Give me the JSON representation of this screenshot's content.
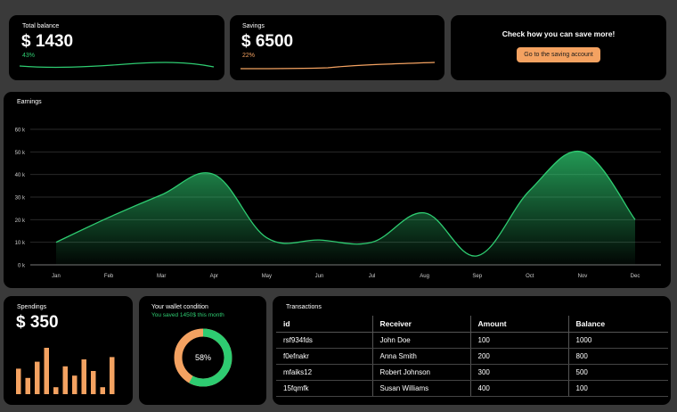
{
  "balance": {
    "label": "Total balance",
    "amount": "$ 1430",
    "percent": "43%",
    "line_color": "#2ecc71"
  },
  "savings": {
    "label": "Savings",
    "amount": "$ 6500",
    "percent": "22%",
    "line_color": "#f4a261"
  },
  "promo": {
    "title": "Check how you can save more!",
    "button_label": "Go to the saving account"
  },
  "earnings": {
    "label": "Earnings",
    "chart_data": {
      "type": "area",
      "categories": [
        "Jan",
        "Feb",
        "Mar",
        "Apr",
        "May",
        "Jun",
        "Jul",
        "Aug",
        "Sep",
        "Oct",
        "Nov",
        "Dec"
      ],
      "values": [
        10000,
        21000,
        31000,
        40000,
        12000,
        11000,
        10000,
        23000,
        4000,
        33000,
        50000,
        20000
      ],
      "y_ticks": [
        "0 k",
        "10 k",
        "20 k",
        "30 k",
        "40 k",
        "50 k",
        "60 k"
      ],
      "ylim": [
        0,
        60000
      ],
      "color": "#2ecc71",
      "grid": true
    }
  },
  "spendings": {
    "label": "Spendings",
    "amount": "$ 350",
    "chart_data": {
      "type": "bar",
      "values": [
        11,
        7,
        14,
        20,
        3,
        12,
        8,
        15,
        10,
        3,
        16
      ],
      "color": "#f4a261"
    }
  },
  "wallet": {
    "label": "Your wallet condition",
    "subtitle": "You saved 1450$ this month",
    "chart_data": {
      "type": "pie",
      "value_percent": 58,
      "center_label": "58%",
      "colors": [
        "#2ecc71",
        "#f4a261"
      ]
    }
  },
  "transactions": {
    "label": "Transactions",
    "columns": [
      "id",
      "Receiver",
      "Amount",
      "Balance"
    ],
    "rows": [
      [
        "rsf934fds",
        "John Doe",
        "100",
        "1000"
      ],
      [
        "f0efnakr",
        "Anna Smith",
        "200",
        "800"
      ],
      [
        "mfaiks12",
        "Robert Johnson",
        "300",
        "500"
      ],
      [
        "15fqmfk",
        "Susan Williams",
        "400",
        "100"
      ]
    ]
  }
}
